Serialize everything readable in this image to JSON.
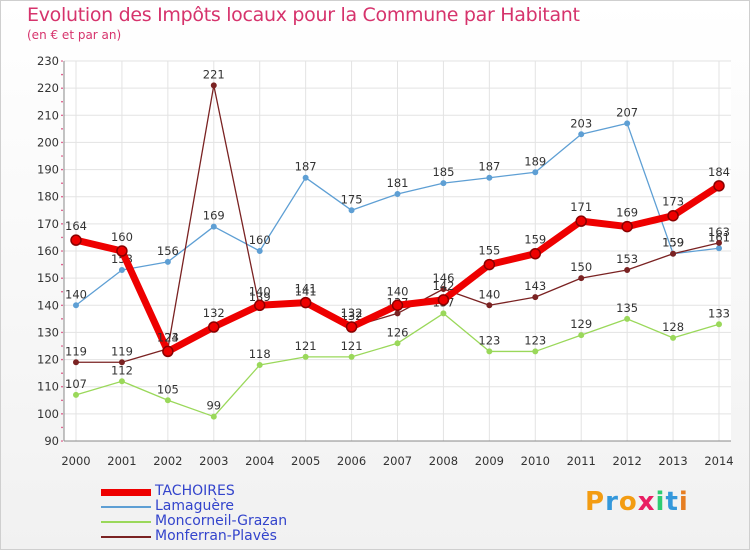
{
  "title": "Evolution des Impôts locaux pour la Commune par Habitant",
  "subtitle": "(en € et par an)",
  "brand": {
    "letters": [
      "P",
      "r",
      "o",
      "x",
      "i",
      "t",
      "i"
    ],
    "colors": [
      "#f39c12",
      "#3498db",
      "#f39c12",
      "#e91e63",
      "#2ecc71",
      "#3498db",
      "#e67e22"
    ]
  },
  "chart_data": {
    "type": "line",
    "title": "Evolution des Impôts locaux pour la Commune par Habitant",
    "subtitle": "(en € et par an)",
    "xlabel": "",
    "ylabel": "",
    "ylim": [
      90,
      230
    ],
    "yticks": [
      90,
      100,
      110,
      120,
      130,
      140,
      150,
      160,
      170,
      180,
      190,
      200,
      210,
      220,
      230
    ],
    "x": [
      "2000",
      "2001",
      "2002",
      "2003",
      "2004",
      "2005",
      "2006",
      "2007",
      "2008",
      "2009",
      "2010",
      "2011",
      "2012",
      "2013",
      "2014"
    ],
    "grid": true,
    "legend_position": "bottom-left",
    "series": [
      {
        "name": "Lamaguère",
        "color": "#5e9fd4",
        "width": 1.3,
        "marker": 2.6,
        "values": [
          140,
          153,
          156,
          169,
          160,
          187,
          175,
          181,
          185,
          187,
          189,
          203,
          207,
          159,
          161
        ],
        "labels": [
          "140",
          "153",
          "156",
          "169",
          "160",
          "187",
          "175",
          "181",
          "185",
          "187",
          "189",
          "203",
          "207",
          "159",
          "161"
        ]
      },
      {
        "name": "Moncorneil-Grazan",
        "color": "#9ad85a",
        "width": 1.3,
        "marker": 2.6,
        "values": [
          107,
          112,
          105,
          99,
          118,
          121,
          121,
          126,
          137,
          123,
          123,
          129,
          135,
          128,
          133
        ],
        "labels": [
          "107",
          "112",
          "105",
          "99",
          "118",
          "121",
          "121",
          "126",
          "137",
          "123",
          "123",
          "129",
          "135",
          "128",
          "133"
        ]
      },
      {
        "name": "Monferran-Plavès",
        "color": "#7a2222",
        "width": 1.3,
        "marker": 2.6,
        "values": [
          119,
          119,
          124,
          221,
          139,
          141,
          132,
          137,
          146,
          140,
          143,
          150,
          153,
          159,
          163
        ],
        "labels": [
          "119",
          "119",
          "124",
          "221",
          "139",
          "141",
          "132",
          "137",
          "146",
          "140",
          "143",
          "150",
          "153",
          "159",
          "163"
        ]
      },
      {
        "name": "TACHOIRES",
        "color": "#ee0000",
        "width": 7,
        "marker": 5,
        "values": [
          164,
          160,
          123,
          132,
          140,
          141,
          132,
          140,
          142,
          155,
          159,
          171,
          169,
          173,
          184
        ],
        "labels": [
          "164",
          "160",
          "123",
          "132",
          "140",
          "141",
          "132",
          "140",
          "142",
          "155",
          "159",
          "171",
          "169",
          "173",
          "184"
        ]
      }
    ],
    "legend": [
      "TACHOIRES",
      "Lamaguère",
      "Moncorneil-Grazan",
      "Monferran-Plavès"
    ]
  }
}
